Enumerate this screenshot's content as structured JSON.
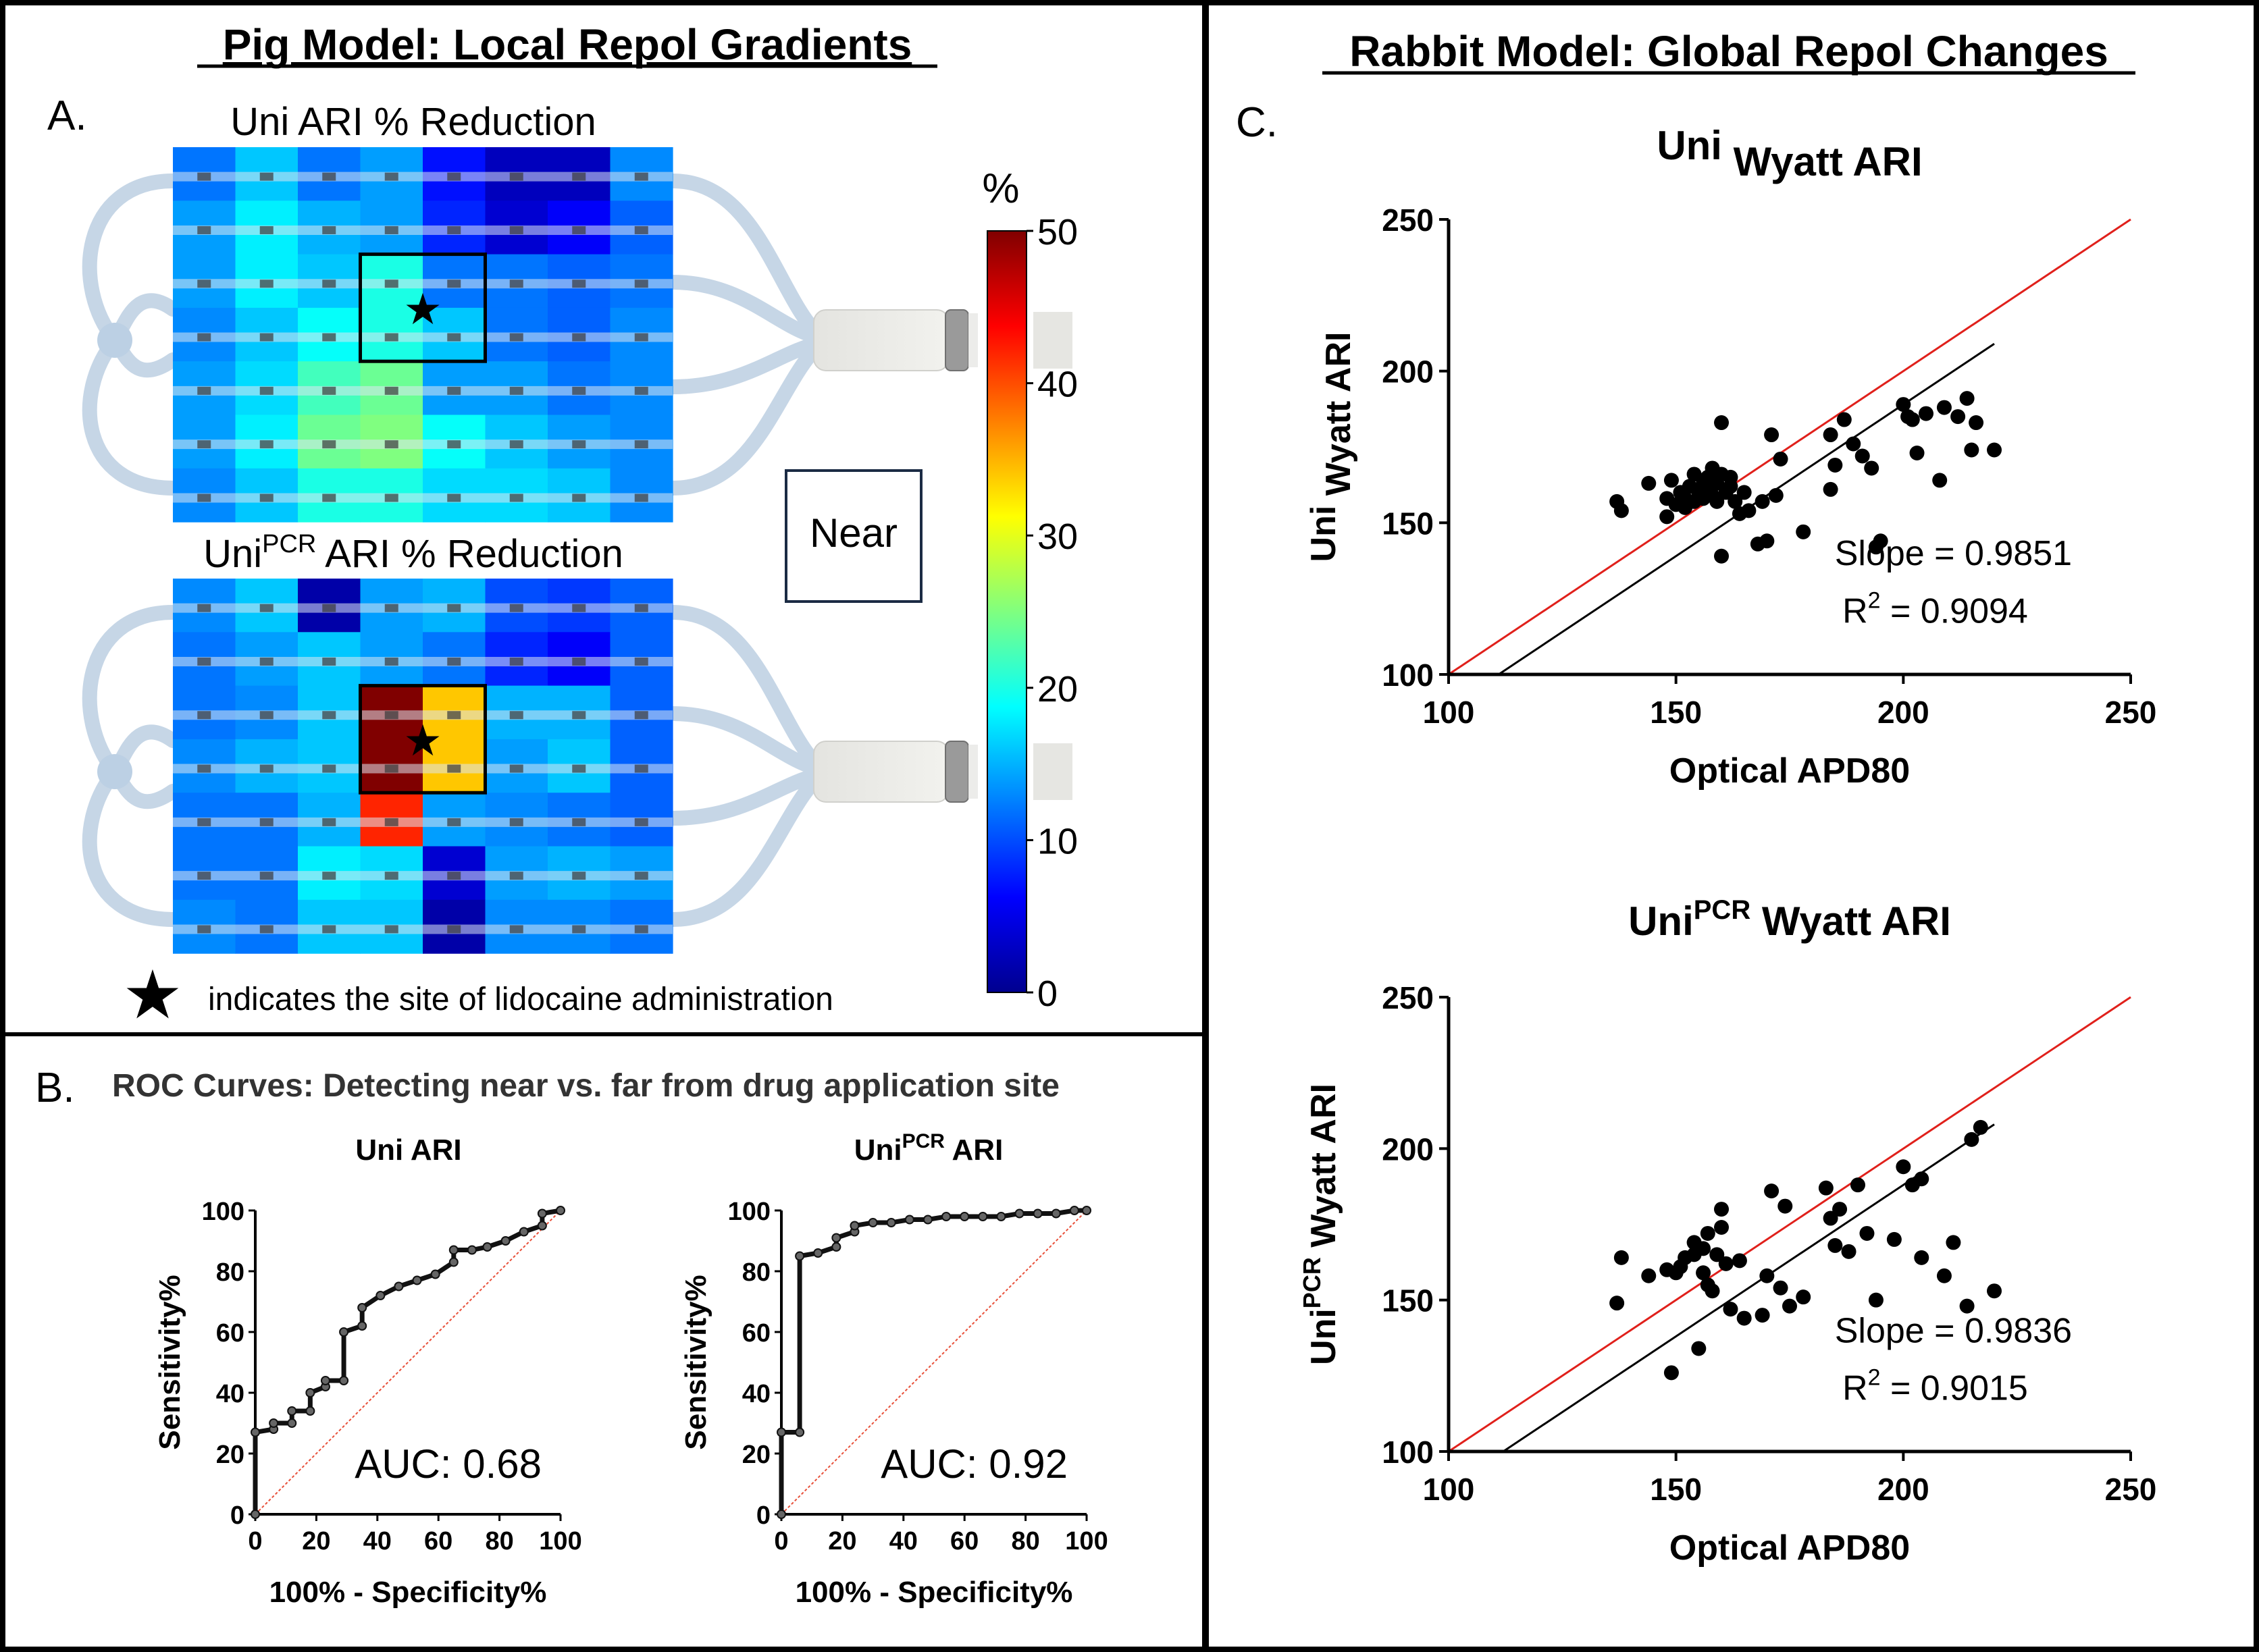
{
  "panel_titles": {
    "left": "Pig Model: Local Repol Gradients",
    "right": "Rabbit Model: Global Repol Changes"
  },
  "panel_letters": {
    "a": "A.",
    "b": "B.",
    "c": "C."
  },
  "panel_a": {
    "heatmap_top": {
      "title_pre": "Uni ARI % Reduction",
      "title_base": "",
      "title_sup": "",
      "title_post": "",
      "grid": [
        [
          12,
          16,
          12,
          14,
          7,
          3,
          3,
          13
        ],
        [
          14,
          18,
          15,
          14,
          8,
          4,
          6,
          11
        ],
        [
          14,
          18,
          16,
          20,
          12,
          12,
          11,
          12
        ],
        [
          13,
          16,
          19,
          20,
          16,
          12,
          11,
          13
        ],
        [
          14,
          17,
          22,
          24,
          14,
          14,
          12,
          13
        ],
        [
          14,
          18,
          24,
          25,
          19,
          16,
          14,
          13
        ],
        [
          13,
          16,
          20,
          20,
          17,
          17,
          16,
          13
        ]
      ],
      "highlight": {
        "row": 2,
        "col": 3,
        "rows": 2,
        "cols": 2
      },
      "star": {
        "row": 3,
        "col": 4
      }
    },
    "heatmap_bottom": {
      "title_pre": "",
      "title_base": "Uni",
      "title_sup": "PCR",
      "title_post": " ARI % Reduction",
      "grid": [
        [
          13,
          16,
          2,
          14,
          15,
          10,
          9,
          11
        ],
        [
          12,
          14,
          16,
          14,
          12,
          8,
          6,
          11
        ],
        [
          12,
          13,
          16,
          50,
          34,
          15,
          15,
          11
        ],
        [
          13,
          15,
          16,
          50,
          34,
          14,
          16,
          11
        ],
        [
          12,
          12,
          15,
          42,
          14,
          13,
          12,
          11
        ],
        [
          12,
          12,
          18,
          17,
          4,
          14,
          15,
          14
        ],
        [
          13,
          12,
          16,
          16,
          2,
          13,
          13,
          12
        ]
      ],
      "highlight": {
        "row": 2,
        "col": 3,
        "rows": 2,
        "cols": 2
      },
      "star": {
        "row": 3,
        "col": 4
      }
    },
    "colorbar": {
      "unit": "%",
      "min": 0,
      "max": 50,
      "ticks": [
        "50",
        "40",
        "30",
        "20",
        "10",
        "0"
      ]
    },
    "near_label": "Near",
    "legend_text": "indicates the site of lidocaine administration",
    "star_glyph": "★"
  },
  "panel_b": {
    "title": "ROC Curves: Detecting near vs. far from drug application site",
    "x_ticks": [
      "0",
      "20",
      "40",
      "60",
      "80",
      "100"
    ],
    "y_ticks": [
      "0",
      "20",
      "40",
      "60",
      "80",
      "100"
    ],
    "xlabel": "100% - Specificity%",
    "ylabel": "Sensitivity%",
    "roc1": {
      "title_base": "Uni ARI",
      "title_sup": "",
      "title_post": "",
      "auc_text": "AUC: 0.68",
      "points": [
        [
          0,
          0
        ],
        [
          0,
          27
        ],
        [
          6,
          28
        ],
        [
          6,
          30
        ],
        [
          12,
          30
        ],
        [
          12,
          34
        ],
        [
          18,
          34
        ],
        [
          18,
          40
        ],
        [
          23,
          42
        ],
        [
          23,
          44
        ],
        [
          29,
          44
        ],
        [
          29,
          60
        ],
        [
          35,
          62
        ],
        [
          35,
          68
        ],
        [
          41,
          72
        ],
        [
          47,
          75
        ],
        [
          53,
          77
        ],
        [
          59,
          79
        ],
        [
          65,
          83
        ],
        [
          65,
          87
        ],
        [
          71,
          87
        ],
        [
          76,
          88
        ],
        [
          82,
          90
        ],
        [
          88,
          93
        ],
        [
          94,
          95
        ],
        [
          94,
          99
        ],
        [
          100,
          100
        ]
      ]
    },
    "roc2": {
      "title_base": "Uni",
      "title_sup": "PCR",
      "title_post": " ARI",
      "auc_text": "AUC: 0.92",
      "points": [
        [
          0,
          0
        ],
        [
          0,
          27
        ],
        [
          6,
          27
        ],
        [
          6,
          85
        ],
        [
          12,
          86
        ],
        [
          18,
          88
        ],
        [
          18,
          91
        ],
        [
          24,
          93
        ],
        [
          24,
          95
        ],
        [
          30,
          96
        ],
        [
          36,
          96
        ],
        [
          42,
          97
        ],
        [
          48,
          97
        ],
        [
          54,
          98
        ],
        [
          60,
          98
        ],
        [
          66,
          98
        ],
        [
          72,
          98
        ],
        [
          78,
          99
        ],
        [
          84,
          99
        ],
        [
          90,
          99
        ],
        [
          96,
          100
        ],
        [
          100,
          100
        ]
      ]
    }
  },
  "panel_c": {
    "xlabel": "Optical APD80",
    "ticks": [
      "100",
      "150",
      "200",
      "250"
    ],
    "scatter1": {
      "title_base": "Uni",
      "title_sup": "",
      "title_post": " Wyatt ARI",
      "ylabel_base": "Uni",
      "ylabel_sup": "",
      "ylabel_post": " Wyatt ARI",
      "slope_text": "Slope = 0.9851",
      "r2_base": "R",
      "r2_sup": "2",
      "r2_post": " = 0.9094",
      "fit_line": [
        [
          111,
          100
        ],
        [
          220,
          209
        ]
      ],
      "points": [
        [
          137,
          157
        ],
        [
          138,
          154
        ],
        [
          144,
          163
        ],
        [
          148,
          152
        ],
        [
          148,
          158
        ],
        [
          149,
          164
        ],
        [
          150,
          156
        ],
        [
          151,
          160
        ],
        [
          152,
          155
        ],
        [
          152,
          158
        ],
        [
          153,
          162
        ],
        [
          154,
          166
        ],
        [
          154,
          157
        ],
        [
          155,
          160
        ],
        [
          156,
          163
        ],
        [
          156,
          158
        ],
        [
          157,
          165
        ],
        [
          157,
          161
        ],
        [
          158,
          168
        ],
        [
          158,
          159
        ],
        [
          159,
          163
        ],
        [
          159,
          157
        ],
        [
          160,
          166
        ],
        [
          160,
          183
        ],
        [
          160,
          139
        ],
        [
          161,
          160
        ],
        [
          162,
          165
        ],
        [
          162,
          162
        ],
        [
          163,
          157
        ],
        [
          164,
          153
        ],
        [
          165,
          160
        ],
        [
          166,
          154
        ],
        [
          168,
          143
        ],
        [
          169,
          157
        ],
        [
          170,
          144
        ],
        [
          171,
          179
        ],
        [
          172,
          159
        ],
        [
          173,
          171
        ],
        [
          178,
          147
        ],
        [
          184,
          179
        ],
        [
          184,
          161
        ],
        [
          185,
          169
        ],
        [
          187,
          184
        ],
        [
          189,
          176
        ],
        [
          191,
          172
        ],
        [
          193,
          168
        ],
        [
          194,
          142
        ],
        [
          195,
          144
        ],
        [
          200,
          189
        ],
        [
          201,
          185
        ],
        [
          202,
          184
        ],
        [
          203,
          173
        ],
        [
          205,
          186
        ],
        [
          208,
          164
        ],
        [
          209,
          188
        ],
        [
          212,
          185
        ],
        [
          214,
          191
        ],
        [
          215,
          174
        ],
        [
          216,
          183
        ],
        [
          220,
          174
        ]
      ]
    },
    "scatter2": {
      "title_base": "Uni",
      "title_sup": "PCR",
      "title_post": " Wyatt ARI",
      "ylabel_base": "Uni",
      "ylabel_sup": "PCR",
      "ylabel_post": " Wyatt ARI",
      "slope_text": "Slope = 0.9836",
      "r2_base": "R",
      "r2_sup": "2",
      "r2_post": " = 0.9015",
      "fit_line": [
        [
          112,
          100
        ],
        [
          220,
          208
        ]
      ],
      "points": [
        [
          137,
          149
        ],
        [
          138,
          164
        ],
        [
          144,
          158
        ],
        [
          148,
          160
        ],
        [
          149,
          126
        ],
        [
          150,
          159
        ],
        [
          151,
          161
        ],
        [
          152,
          164
        ],
        [
          154,
          169
        ],
        [
          154,
          165
        ],
        [
          155,
          134
        ],
        [
          156,
          159
        ],
        [
          156,
          167
        ],
        [
          157,
          172
        ],
        [
          157,
          155
        ],
        [
          158,
          153
        ],
        [
          159,
          165
        ],
        [
          160,
          174
        ],
        [
          160,
          180
        ],
        [
          161,
          162
        ],
        [
          162,
          147
        ],
        [
          164,
          163
        ],
        [
          165,
          144
        ],
        [
          169,
          145
        ],
        [
          170,
          158
        ],
        [
          171,
          186
        ],
        [
          173,
          154
        ],
        [
          174,
          181
        ],
        [
          175,
          148
        ],
        [
          178,
          151
        ],
        [
          183,
          187
        ],
        [
          184,
          177
        ],
        [
          185,
          168
        ],
        [
          186,
          180
        ],
        [
          188,
          166
        ],
        [
          190,
          188
        ],
        [
          192,
          172
        ],
        [
          194,
          150
        ],
        [
          198,
          170
        ],
        [
          200,
          194
        ],
        [
          202,
          188
        ],
        [
          204,
          190
        ],
        [
          204,
          164
        ],
        [
          209,
          158
        ],
        [
          211,
          169
        ],
        [
          214,
          148
        ],
        [
          215,
          203
        ],
        [
          217,
          207
        ],
        [
          220,
          153
        ]
      ]
    }
  },
  "colors": {
    "identity_line": "#e0201b",
    "fit_line": "#000000",
    "roc_reference": "#e8503a"
  }
}
